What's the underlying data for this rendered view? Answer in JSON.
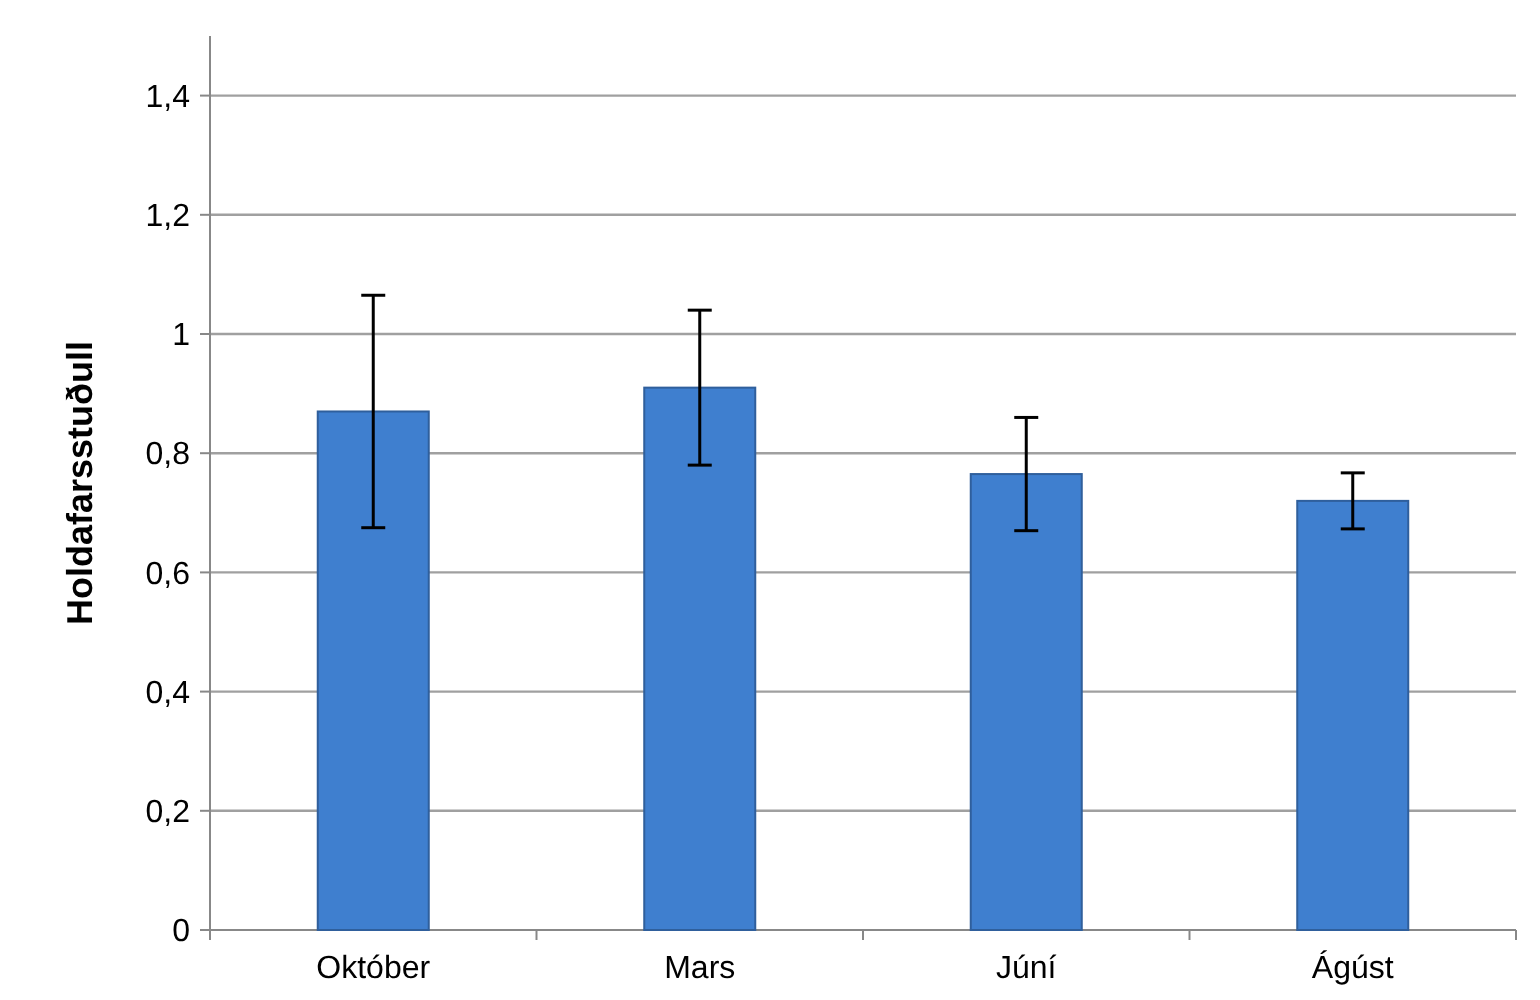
{
  "chart_data": {
    "type": "bar",
    "ylabel": "Holdafarsstuðull",
    "categories": [
      "Október",
      "Mars",
      "Júní",
      "Ágúst"
    ],
    "values": [
      0.87,
      0.91,
      0.765,
      0.72
    ],
    "errors": [
      0.195,
      0.13,
      0.095,
      0.047
    ],
    "color": "#3f7fcf",
    "ylim": [
      0,
      1.5
    ],
    "yticks": [
      0,
      {
        "value": 0.2,
        "label": "0,2"
      },
      {
        "value": 0.4,
        "label": "0,4"
      },
      {
        "value": 0.6,
        "label": "0,6"
      },
      {
        "value": 0.8,
        "label": "0,8"
      },
      1,
      {
        "value": 1.2,
        "label": "1,2"
      },
      {
        "value": 1.4,
        "label": "1,4"
      }
    ],
    "grid": "y"
  }
}
